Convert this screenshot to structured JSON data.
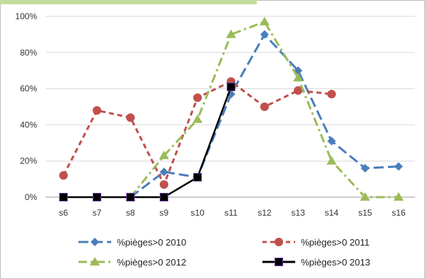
{
  "chart_data": {
    "type": "line",
    "title": "",
    "xlabel": "",
    "ylabel": "",
    "categories": [
      "s6",
      "s7",
      "s8",
      "s9",
      "s10",
      "s11",
      "s12",
      "s13",
      "s14",
      "s15",
      "s16"
    ],
    "y_ticks": [
      "0%",
      "20%",
      "40%",
      "60%",
      "80%",
      "100%"
    ],
    "ylim": [
      0,
      100
    ],
    "grid": "horizontal",
    "legend_placement": "bottom",
    "series": [
      {
        "name": "%pièges>0 2010",
        "color": "#4a7ebb",
        "marker": "diamond",
        "dash": "dashed",
        "values": [
          null,
          null,
          0,
          14,
          11,
          57,
          90,
          70,
          31,
          16,
          17
        ]
      },
      {
        "name": "%pièges>0 2011",
        "color": "#c0504d",
        "marker": "circle",
        "dash": "dotted",
        "values": [
          12,
          48,
          44,
          7,
          55,
          64,
          50,
          59,
          57,
          null,
          null
        ]
      },
      {
        "name": "%pièges>0 2012",
        "color": "#9bbb59",
        "marker": "triangle",
        "dash": "dashdot",
        "values": [
          null,
          null,
          0,
          23,
          43,
          90,
          97,
          66,
          20,
          0,
          0
        ]
      },
      {
        "name": "%pièges>0 2013",
        "color": "#000000",
        "marker": "square",
        "dash": "solid",
        "values": [
          0,
          0,
          0,
          0,
          11,
          61,
          null,
          null,
          null,
          null,
          null
        ]
      }
    ]
  }
}
